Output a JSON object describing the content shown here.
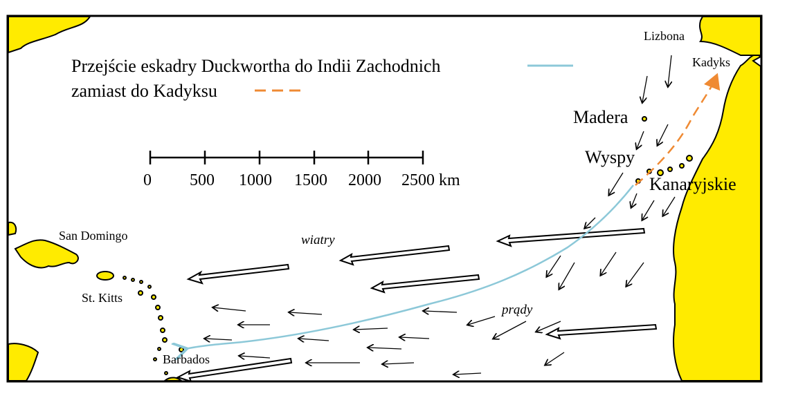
{
  "legend": [
    {
      "label": "Przejście eskadry Duckwortha do Indii Zachodnich"
    },
    {
      "label": "zamiast do Kadyksu"
    }
  ],
  "scale": {
    "labels": [
      "0",
      "500",
      "1000",
      "1500",
      "2000",
      "2500 km"
    ]
  },
  "places": {
    "lisbon": "Lizbona",
    "cadiz": "Kadyks",
    "madeira": "Madera",
    "canary_1": "Wyspy",
    "canary_2": "Kanaryjskie",
    "san_domingo": "San Domingo",
    "st_kitts": "St. Kitts",
    "barbados": "Barbados"
  },
  "annotations": {
    "winds": "wiatry",
    "currents": "prądy"
  }
}
